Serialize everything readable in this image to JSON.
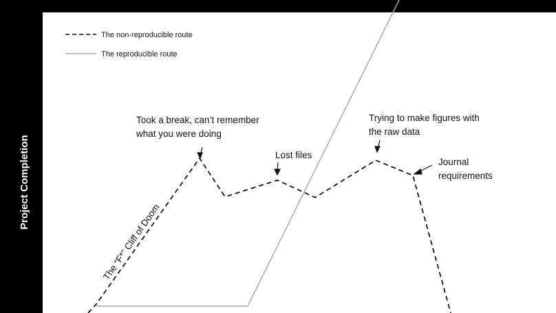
{
  "y_axis_label": "Project Completion",
  "legend": {
    "dashed": "The non-reproducible route",
    "solid": "The reproducible route"
  },
  "annotations": {
    "break": [
      "Took a break, can’t remember",
      "what you were doing"
    ],
    "lost_files": "Lost files",
    "figures": [
      "Trying to make figures with",
      "the raw data"
    ],
    "journal": [
      "Journal",
      "requirements"
    ],
    "cliff": "The “F*” Cliff of Doom"
  }
}
